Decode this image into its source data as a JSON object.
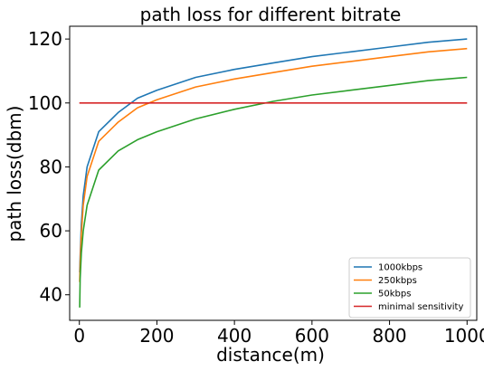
{
  "chart_data": {
    "type": "line",
    "title": "path loss for different bitrate",
    "xlabel": "distance(m)",
    "ylabel": "path loss(dbm)",
    "xlim": [
      -25,
      1025
    ],
    "ylim": [
      32,
      124
    ],
    "xticks": [
      0,
      200,
      400,
      600,
      800,
      1000
    ],
    "yticks": [
      40,
      60,
      80,
      100,
      120
    ],
    "grid": false,
    "legend_position": "bottom-right",
    "series": [
      {
        "name": "1000kbps",
        "color": "#1f77b4",
        "x": [
          1,
          2,
          5,
          10,
          20,
          50,
          100,
          150,
          200,
          300,
          400,
          500,
          600,
          700,
          800,
          900,
          1000
        ],
        "y": [
          47,
          52,
          62,
          71,
          80,
          91,
          97,
          101.5,
          104,
          108,
          110.5,
          112.5,
          114.5,
          116,
          117.5,
          119,
          120
        ]
      },
      {
        "name": "250kbps",
        "color": "#ff7f0e",
        "x": [
          1,
          2,
          5,
          10,
          20,
          50,
          100,
          150,
          200,
          300,
          400,
          500,
          600,
          700,
          800,
          900,
          1000
        ],
        "y": [
          44,
          50,
          59,
          68,
          77,
          88,
          94,
          98.5,
          101,
          105,
          107.5,
          109.5,
          111.5,
          113,
          114.5,
          116,
          117
        ]
      },
      {
        "name": "50kbps",
        "color": "#2ca02c",
        "x": [
          1,
          2,
          5,
          10,
          20,
          50,
          100,
          150,
          200,
          300,
          400,
          500,
          600,
          700,
          800,
          900,
          1000
        ],
        "y": [
          36,
          45,
          53,
          60,
          68,
          79,
          85,
          88.5,
          91,
          95,
          98,
          100.5,
          102.5,
          104,
          105.5,
          107,
          108
        ]
      },
      {
        "name": "minimal sensitivity",
        "color": "#d62728",
        "x": [
          0,
          1000
        ],
        "y": [
          100,
          100
        ]
      }
    ]
  }
}
